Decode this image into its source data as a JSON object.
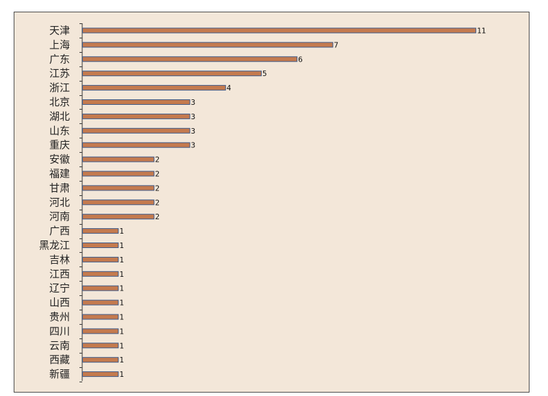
{
  "chart_data": {
    "type": "bar",
    "orientation": "horizontal",
    "title": "",
    "xlabel": "",
    "ylabel": "",
    "categories": [
      "天津",
      "上海",
      "广东",
      "江苏",
      "浙江",
      "北京",
      "湖北",
      "山东",
      "重庆",
      "安徽",
      "福建",
      "甘肃",
      "河北",
      "河南",
      "广西",
      "黑龙江",
      "吉林",
      "江西",
      "辽宁",
      "山西",
      "贵州",
      "四川",
      "云南",
      "西藏",
      "新疆"
    ],
    "values": [
      11,
      7,
      6,
      5,
      4,
      3,
      3,
      3,
      3,
      2,
      2,
      2,
      2,
      2,
      1,
      1,
      1,
      1,
      1,
      1,
      1,
      1,
      1,
      1,
      1
    ],
    "value_labels": [
      "11",
      "7",
      "6",
      "5",
      "4",
      "3",
      "3",
      "3",
      "3",
      "2",
      "2",
      "2",
      "2",
      "2",
      "1",
      "1",
      "1",
      "1",
      "1",
      "1",
      "1",
      "1",
      "1",
      "1",
      "1"
    ],
    "xlim": [
      0,
      11
    ],
    "grid": false,
    "legend": "none",
    "colors": {
      "background": "#f3e7d9",
      "bar_fill": "#c47a4e",
      "bar_stroke": "#3c5a8a",
      "axis": "#333333"
    }
  }
}
